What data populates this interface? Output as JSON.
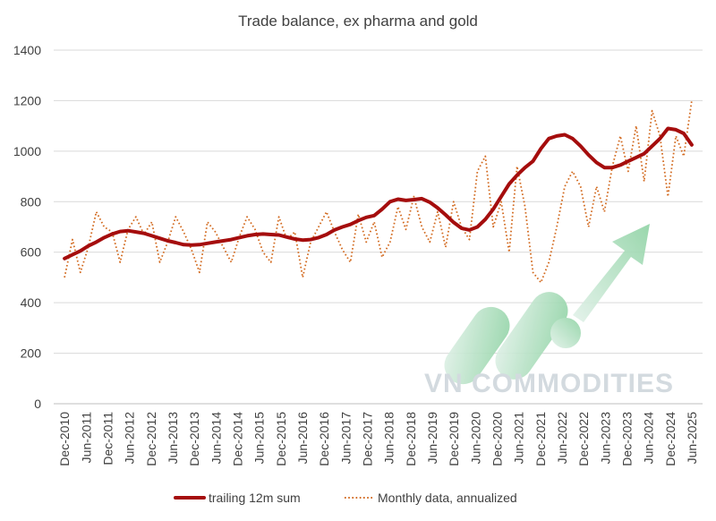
{
  "chart_data": {
    "type": "line",
    "title": "Trade balance, ex pharma and gold",
    "xlabel": "",
    "ylabel": "",
    "ylim": [
      0,
      1400
    ],
    "yticks": [
      0,
      200,
      400,
      600,
      800,
      1000,
      1200,
      1400
    ],
    "x_start": "Dec-2010",
    "x_end": "Oct-2025",
    "x_tick_labels": [
      "Dec-2010",
      "Jun-2011",
      "Dec-2011",
      "Jun-2012",
      "Dec-2012",
      "Jun-2013",
      "Dec-2013",
      "Jun-2014",
      "Dec-2014",
      "Jun-2015",
      "Dec-2015",
      "Jun-2016",
      "Dec-2016",
      "Jun-2017",
      "Dec-2017",
      "Jun-2018",
      "Dec-2018",
      "Jun-2019",
      "Dec-2019",
      "Jun-2020",
      "Dec-2020",
      "Jun-2021",
      "Dec-2021",
      "Jun-2022",
      "Dec-2022",
      "Jun-2023",
      "Dec-2023",
      "Jun-2024",
      "Dec-2024",
      "Jun-2025"
    ],
    "grid": true,
    "legend": "bottom",
    "series": [
      {
        "name": "trailing 12m sum",
        "style": "solid",
        "color": "#a50d0d",
        "values": [
          575,
          590,
          605,
          625,
          640,
          658,
          672,
          682,
          685,
          680,
          675,
          665,
          655,
          645,
          638,
          630,
          628,
          630,
          635,
          640,
          645,
          650,
          658,
          665,
          670,
          672,
          670,
          668,
          660,
          652,
          648,
          650,
          658,
          670,
          688,
          700,
          710,
          725,
          738,
          745,
          770,
          800,
          810,
          805,
          808,
          812,
          798,
          775,
          748,
          718,
          695,
          688,
          700,
          730,
          770,
          820,
          870,
          905,
          935,
          960,
          1010,
          1050,
          1060,
          1065,
          1050,
          1020,
          985,
          955,
          935,
          935,
          945,
          960,
          975,
          990,
          1020,
          1050,
          1090,
          1085,
          1070,
          1025
        ]
      },
      {
        "name": "Monthly data, annualized",
        "style": "dotted",
        "color": "#d2691e",
        "values": [
          500,
          650,
          520,
          620,
          760,
          700,
          680,
          560,
          690,
          740,
          670,
          720,
          560,
          640,
          740,
          680,
          610,
          520,
          720,
          680,
          620,
          560,
          660,
          740,
          690,
          600,
          560,
          740,
          650,
          680,
          500,
          640,
          700,
          760,
          680,
          610,
          560,
          750,
          640,
          720,
          580,
          640,
          780,
          690,
          820,
          700,
          640,
          760,
          620,
          800,
          700,
          650,
          920,
          980,
          700,
          800,
          600,
          940,
          780,
          520,
          480,
          560,
          700,
          860,
          920,
          860,
          700,
          860,
          760,
          940,
          1060,
          920,
          1100,
          880,
          1160,
          1060,
          820,
          1060,
          980,
          1200
        ]
      }
    ]
  },
  "watermark": {
    "text": "VN COMMODITIES"
  },
  "colors": {
    "trailing": "#a50d0d",
    "monthly": "#d2691e",
    "grid": "#d9d9d9",
    "axis_text": "#404040",
    "watermark_green_start": "#e3f2ea",
    "watermark_green_end": "#8fd3a4"
  }
}
